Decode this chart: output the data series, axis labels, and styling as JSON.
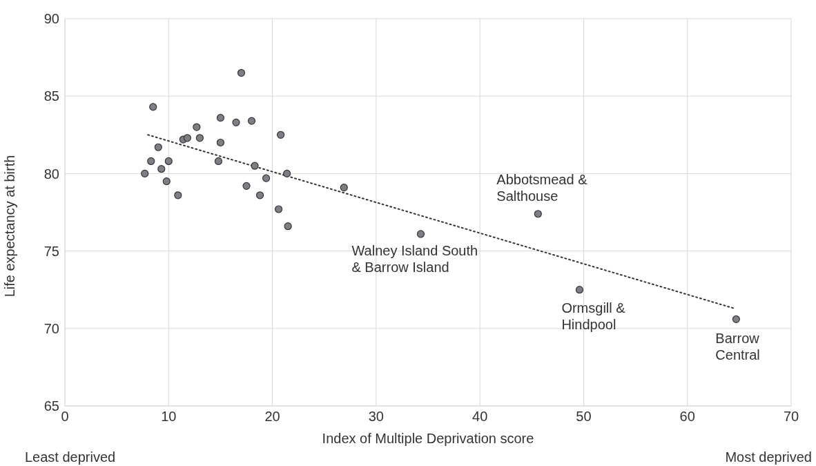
{
  "chart_data": {
    "type": "scatter",
    "xlabel": "Index of Multiple Deprivation score",
    "ylabel": "Life expectancy at birth",
    "xlim": [
      0,
      70
    ],
    "xticks": [
      0,
      10,
      20,
      30,
      40,
      50,
      60,
      70
    ],
    "ylim": [
      65,
      90
    ],
    "yticks": [
      65,
      70,
      75,
      80,
      85,
      90
    ],
    "grid": true,
    "series": [
      {
        "marker": "circle",
        "color": "#7f7d86",
        "x": [
          7.7,
          8.5,
          8.3,
          9.0,
          9.3,
          9.8,
          10.0,
          10.9,
          11.4,
          11.8,
          12.7,
          13.0,
          14.8,
          15.0,
          15.0,
          16.5,
          17.0,
          18.0,
          18.3,
          17.5,
          19.4,
          18.8,
          20.8,
          21.4,
          20.6,
          21.5,
          26.9,
          34.3,
          45.6,
          49.6,
          64.7
        ],
        "values": [
          80.0,
          84.3,
          80.8,
          81.7,
          80.3,
          79.5,
          80.8,
          78.6,
          82.2,
          82.3,
          83.0,
          82.3,
          80.8,
          83.6,
          82.0,
          83.3,
          86.5,
          83.4,
          80.5,
          79.2,
          79.7,
          78.6,
          82.5,
          80.0,
          77.7,
          76.6,
          79.1,
          76.1,
          77.4,
          72.5,
          70.6
        ]
      },
      {
        "type": "line",
        "color": "#333333",
        "line_style": "dotted",
        "x": [
          8.0,
          64.5
        ],
        "values": [
          82.5,
          71.3
        ]
      }
    ],
    "annotations": [
      {
        "text": "Abbotsmead &\nSalthouse",
        "x": 45.6,
        "y": 77.4
      },
      {
        "text": "Walney Island South\n& Barrow Island",
        "x": 34.3,
        "y": 76.1
      },
      {
        "text": "Ormsgill &\nHindpool",
        "x": 49.6,
        "y": 72.5
      },
      {
        "text": "Barrow\nCentral",
        "x": 64.7,
        "y": 70.6
      },
      "Least deprived",
      "Most deprived"
    ]
  }
}
